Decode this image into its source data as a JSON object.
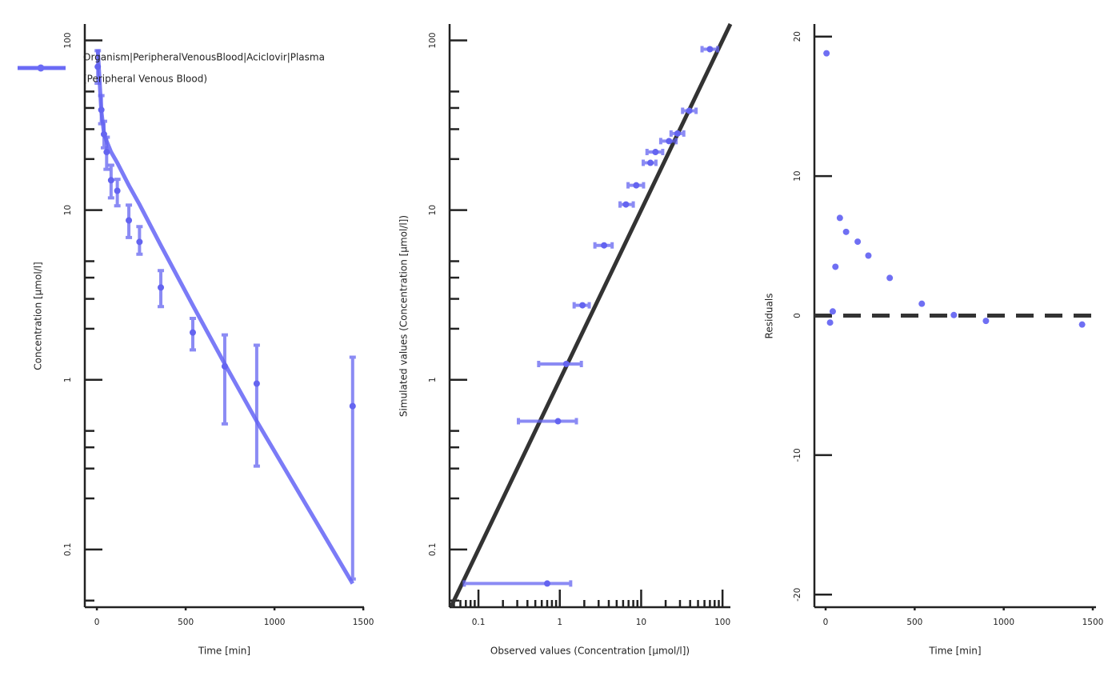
{
  "chart_data": [
    {
      "type": "line",
      "xlabel": "Time [min]",
      "ylabel": "Concentration [µmol/l]",
      "xlim": [
        -68,
        1504
      ],
      "ylim": [
        0.0457,
        125
      ],
      "log_y": true,
      "xticks": [
        0,
        500,
        1000,
        1500
      ],
      "yticks": [
        0.1,
        1,
        10,
        100
      ],
      "yminorticks": [
        0.05,
        0.2,
        0.3,
        0.4,
        0.5,
        2,
        3,
        4,
        5,
        20,
        30,
        40,
        50
      ],
      "legend": {
        "labels": [
          "Organism|PeripheralVenousBlood|Aciclovir|Plasma",
          "(Peripheral Venous Blood)"
        ],
        "position": "top-left",
        "color": "#6b6bf5"
      },
      "series": [
        {
          "type": "line",
          "color": "#7b7bf7",
          "x": [
            5,
            25,
            40,
            55,
            80,
            115,
            180,
            240,
            360,
            540,
            720,
            900,
            1440
          ],
          "values": [
            88.8,
            38.5,
            28.3,
            25.5,
            22,
            19,
            14,
            10.8,
            6.2,
            2.75,
            1.24,
            0.57,
            0.063
          ]
        },
        {
          "type": "scatter",
          "color": "#6464f0",
          "x": [
            5,
            25,
            40,
            55,
            80,
            115,
            180,
            240,
            360,
            540,
            720,
            900,
            1440
          ],
          "values": [
            70,
            39,
            28,
            22,
            15,
            13,
            8.7,
            6.5,
            3.5,
            1.9,
            1.2,
            0.95,
            0.7
          ],
          "error_low": [
            56,
            32.3,
            23.3,
            17.4,
            11.8,
            10.6,
            6.9,
            5.5,
            2.7,
            1.5,
            0.55,
            0.31,
            0.067
          ],
          "error_high": [
            87,
            47.3,
            33.4,
            26.9,
            18.4,
            15.2,
            10.7,
            8,
            4.4,
            2.3,
            1.84,
            1.6,
            1.36
          ]
        }
      ]
    },
    {
      "type": "scatter",
      "xlabel": "Observed values (Concentration [µmol/l])",
      "ylabel": "Simulated values (Concentration [µmol/l])",
      "xlim": [
        0.0442,
        125
      ],
      "ylim": [
        0.0457,
        125
      ],
      "log_x": true,
      "log_y": true,
      "xticks": [
        0.1,
        1,
        10,
        100
      ],
      "yticks": [
        0.1,
        1,
        10,
        100
      ],
      "xminorticks": [
        0.05,
        0.06,
        0.07,
        0.08,
        0.09,
        0.2,
        0.3,
        0.4,
        0.5,
        0.6,
        0.7,
        0.8,
        0.9,
        2,
        3,
        4,
        5,
        6,
        7,
        8,
        9,
        20,
        30,
        40,
        50,
        60,
        70,
        80,
        90
      ],
      "yminorticks": [
        0.05,
        0.2,
        0.3,
        0.4,
        0.5,
        2,
        3,
        4,
        5,
        20,
        30,
        40,
        50
      ],
      "series": [
        {
          "type": "line",
          "color": "#333333",
          "x": [
            0.046,
            125
          ],
          "values": [
            0.046,
            125
          ]
        },
        {
          "type": "scatter",
          "color": "#6464f0",
          "x": [
            70,
            39,
            28,
            22,
            15,
            13,
            8.7,
            6.5,
            3.5,
            1.9,
            1.2,
            0.95,
            0.7
          ],
          "values": [
            88.8,
            38.5,
            28.3,
            25.5,
            22,
            19,
            14,
            10.8,
            6.2,
            2.75,
            1.24,
            0.57,
            0.063
          ],
          "xerror_low": [
            56,
            32.3,
            23.3,
            17.4,
            11.8,
            10.6,
            6.9,
            5.5,
            2.7,
            1.5,
            0.55,
            0.31,
            0.067
          ],
          "xerror_high": [
            87,
            47.3,
            33.4,
            26.9,
            18.4,
            15.2,
            10.7,
            8,
            4.4,
            2.3,
            1.84,
            1.6,
            1.36
          ]
        }
      ]
    },
    {
      "type": "scatter",
      "xlabel": "Time [min]",
      "ylabel": "Residuals",
      "xlim": [
        -63,
        1518
      ],
      "ylim": [
        -20.9,
        20.9
      ],
      "xticks": [
        0,
        500,
        1000,
        1500
      ],
      "yticks": [
        -20,
        -10,
        0,
        10,
        20
      ],
      "reference_y": 0,
      "series": [
        {
          "type": "scatter",
          "color": "#6f6ff3",
          "x": [
            5,
            25,
            40,
            55,
            80,
            115,
            180,
            240,
            360,
            540,
            720,
            900,
            1440
          ],
          "values": [
            18.8,
            -0.5,
            0.3,
            3.5,
            7,
            6,
            5.3,
            4.3,
            2.7,
            0.85,
            0.04,
            -0.38,
            -0.64
          ]
        }
      ]
    }
  ]
}
